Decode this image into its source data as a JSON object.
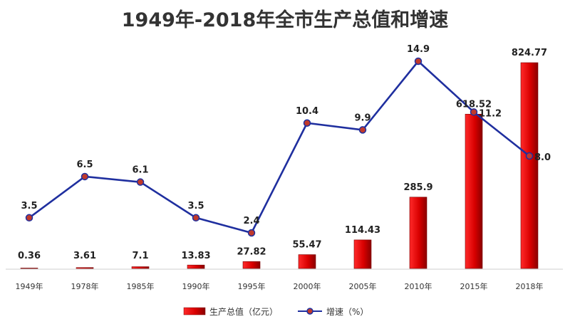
{
  "chart_data": {
    "type": "bar",
    "title": "1949年-2018年全市生产总值和增速",
    "categories": [
      "1949年",
      "1978年",
      "1985年",
      "1990年",
      "1995年",
      "2000年",
      "2005年",
      "2010年",
      "2015年",
      "2018年"
    ],
    "series": [
      {
        "name": "生产总值（亿元）",
        "kind": "bar",
        "values": [
          0.36,
          3.61,
          7.1,
          13.83,
          27.82,
          55.47,
          114.43,
          285.9,
          618.52,
          824.77
        ],
        "labels": [
          "0.36",
          "3.61",
          "7.1",
          "13.83",
          "27.82",
          "55.47",
          "114.43",
          "285.9",
          "618.52",
          "824.77"
        ],
        "color": "#e00000"
      },
      {
        "name": "增速（%）",
        "kind": "line",
        "values": [
          3.5,
          6.5,
          6.1,
          3.5,
          2.4,
          10.4,
          9.9,
          14.9,
          11.2,
          8.0
        ],
        "labels": [
          "3.5",
          "6.5",
          "6.1",
          "3.5",
          "2.4",
          "10.4",
          "9.9",
          "14.9",
          "11.2",
          "8.0"
        ],
        "color": "#1f2f9f",
        "marker_color": "#c0392b"
      }
    ],
    "ylim_bar": [
      0,
      900
    ],
    "ylim_line": [
      -2,
      16
    ],
    "grid": false,
    "legend_position": "bottom"
  }
}
